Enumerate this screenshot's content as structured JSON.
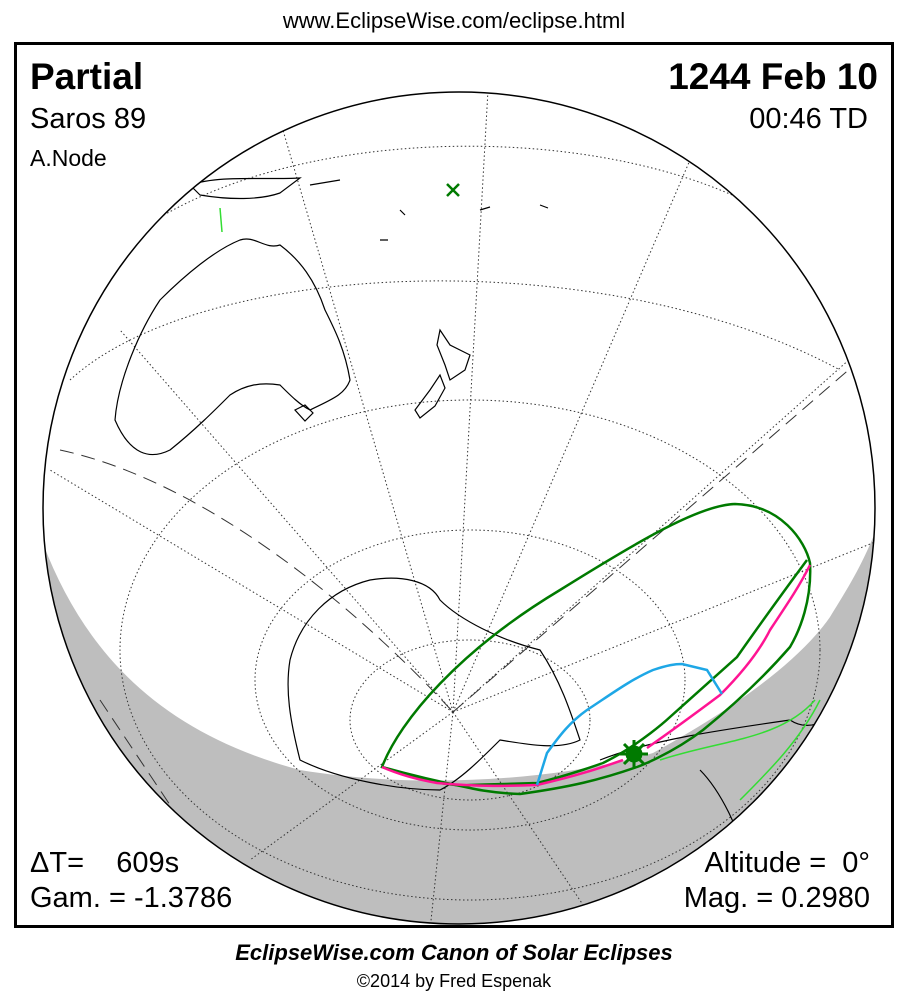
{
  "header": {
    "url": "www.EclipseWise.com/eclipse.html"
  },
  "eclipse": {
    "type": "Partial",
    "date": "1244 Feb 10",
    "saros": "Saros  89",
    "time": "00:46 TD",
    "node": "A.Node",
    "delta_t": "ΔT=    609s",
    "gamma": "Gam. = -1.3786",
    "altitude": "Altitude =  0°",
    "magnitude": "Mag. = 0.2980"
  },
  "footer": {
    "title": "EclipseWise.com Canon of Solar Eclipses",
    "copyright": "©2014 by Fred Espenak"
  },
  "map": {
    "projection": "orthographic",
    "markers": [
      "greatest-eclipse-sun-icon",
      "subsolar-x-icon"
    ],
    "colors": {
      "penumbral_limits": "#007a00",
      "max_at_horizon": "#ff1493",
      "eclipse_at_sunrise": "#1ea7e6",
      "night": "#bebebe",
      "coastlines": "#000000",
      "green_coast": "#33dd33"
    }
  }
}
